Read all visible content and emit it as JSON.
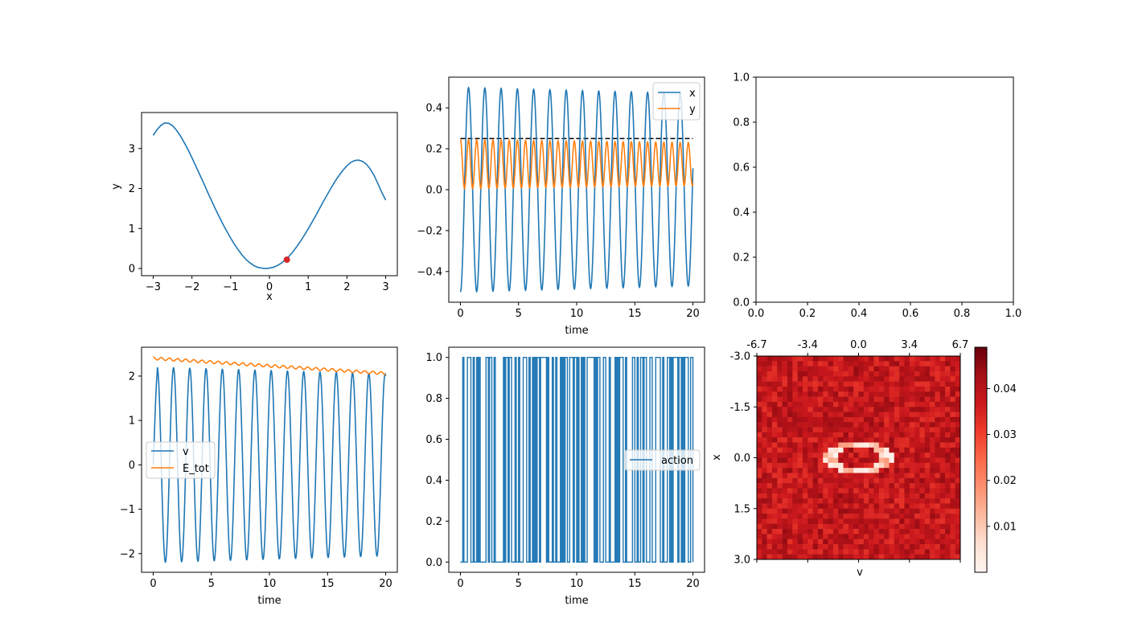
{
  "chart_data": [
    {
      "id": "potential",
      "type": "line",
      "xlabel": "x",
      "ylabel": "y",
      "xlim": [
        -3.3,
        3.3
      ],
      "ylim": [
        -0.18,
        3.9
      ],
      "xticks": [
        -3,
        -2,
        -1,
        0,
        1,
        2,
        3
      ],
      "yticks": [
        0,
        1,
        2,
        3
      ],
      "series": [
        {
          "color": "#1f77b4",
          "x": [
            -3.0,
            -2.9,
            -2.8,
            -2.7,
            -2.6,
            -2.5,
            -2.4,
            -2.3,
            -2.2,
            -2.1,
            -2.0,
            -1.9,
            -1.8,
            -1.7,
            -1.6,
            -1.5,
            -1.4,
            -1.3,
            -1.2,
            -1.1,
            -1.0,
            -0.9,
            -0.8,
            -0.7,
            -0.6,
            -0.5,
            -0.4,
            -0.3,
            -0.2,
            -0.1,
            0.0,
            0.1,
            0.2,
            0.3,
            0.4,
            0.5,
            0.6,
            0.7,
            0.8,
            0.9,
            1.0,
            1.1,
            1.2,
            1.3,
            1.4,
            1.5,
            1.6,
            1.7,
            1.8,
            1.9,
            2.0,
            2.1,
            2.2,
            2.3,
            2.4,
            2.5,
            2.6,
            2.7,
            2.8,
            2.9,
            3.0
          ],
          "y": [
            3.33,
            3.47,
            3.58,
            3.64,
            3.63,
            3.57,
            3.46,
            3.32,
            3.15,
            2.97,
            2.77,
            2.56,
            2.35,
            2.14,
            1.92,
            1.71,
            1.5,
            1.3,
            1.11,
            0.93,
            0.76,
            0.6,
            0.46,
            0.33,
            0.22,
            0.14,
            0.07,
            0.03,
            0.01,
            0.0,
            0.01,
            0.03,
            0.07,
            0.13,
            0.21,
            0.3,
            0.41,
            0.54,
            0.68,
            0.83,
            0.99,
            1.16,
            1.33,
            1.51,
            1.69,
            1.86,
            2.03,
            2.19,
            2.33,
            2.46,
            2.57,
            2.65,
            2.7,
            2.71,
            2.68,
            2.61,
            2.49,
            2.33,
            2.12,
            1.9,
            1.71
          ]
        }
      ],
      "marker": {
        "x": 0.45,
        "y": 0.22,
        "color": "#d62728"
      }
    },
    {
      "id": "state",
      "type": "line",
      "xlabel": "time",
      "xlim": [
        -1.0,
        21.0
      ],
      "ylim": [
        -0.55,
        0.55
      ],
      "xticks": [
        0,
        5,
        10,
        15,
        20
      ],
      "yticks": [
        -0.4,
        -0.2,
        0.0,
        0.2,
        0.4
      ],
      "legend": "top-right",
      "threshold": {
        "y": 0.25,
        "color": "#000000",
        "dash": true
      },
      "series": [
        {
          "name": "x",
          "color": "#1f77b4",
          "amplitude_start": 0.5,
          "amplitude_end": 0.47,
          "period": 1.4
        },
        {
          "name": "y",
          "color": "#ff7f0e",
          "center": 0.125,
          "amplitude_start": 0.12,
          "amplitude_end": 0.105,
          "period": 0.7
        }
      ]
    },
    {
      "id": "empty",
      "type": "line",
      "xlim": [
        0,
        1
      ],
      "ylim": [
        0,
        1
      ],
      "xticks": [
        0.0,
        0.2,
        0.4,
        0.6,
        0.8,
        1.0
      ],
      "yticks": [
        0.0,
        0.2,
        0.4,
        0.6,
        0.8,
        1.0
      ],
      "series": []
    },
    {
      "id": "velocity",
      "type": "line",
      "xlabel": "time",
      "xlim": [
        -1.0,
        21.0
      ],
      "ylim": [
        -2.42,
        2.65
      ],
      "xticks": [
        0,
        5,
        10,
        15,
        20
      ],
      "yticks": [
        -2,
        -1,
        0,
        1,
        2
      ],
      "legend": "center-left",
      "series": [
        {
          "name": "v",
          "color": "#1f77b4",
          "amplitude_start": 2.2,
          "amplitude_end": 2.05,
          "period": 1.4
        },
        {
          "name": "E_tot",
          "color": "#ff7f0e",
          "start": 2.4,
          "end": 2.06,
          "ripple": 0.03
        }
      ]
    },
    {
      "id": "action",
      "type": "line",
      "xlabel": "time",
      "xlim": [
        -1.0,
        21.0
      ],
      "ylim": [
        -0.05,
        1.05
      ],
      "xticks": [
        0,
        5,
        10,
        15,
        20
      ],
      "yticks": [
        0.0,
        0.2,
        0.4,
        0.6,
        0.8,
        1.0
      ],
      "legend": "center-right",
      "series": [
        {
          "name": "action",
          "color": "#1f77b4",
          "values_binary": true
        }
      ]
    },
    {
      "id": "heatmap",
      "type": "heatmap",
      "xlabel": "v",
      "ylabel": "x",
      "grid_size": 40,
      "top_ticks": [
        "-6.7",
        "-3.4",
        "0.0",
        "3.4",
        "6.7"
      ],
      "left_ticks": [
        "-3.0",
        "-1.5",
        "0.0",
        "1.5",
        "3.0"
      ],
      "colorbar_ticks": [
        0.01,
        0.02,
        0.03,
        0.04
      ],
      "colorbar_range": [
        0.0,
        0.049
      ],
      "colormap": "Reds",
      "ring": {
        "center_col": 20,
        "center_row": 20,
        "radius_cols": 5.5,
        "radius_rows": 2.5
      }
    }
  ]
}
